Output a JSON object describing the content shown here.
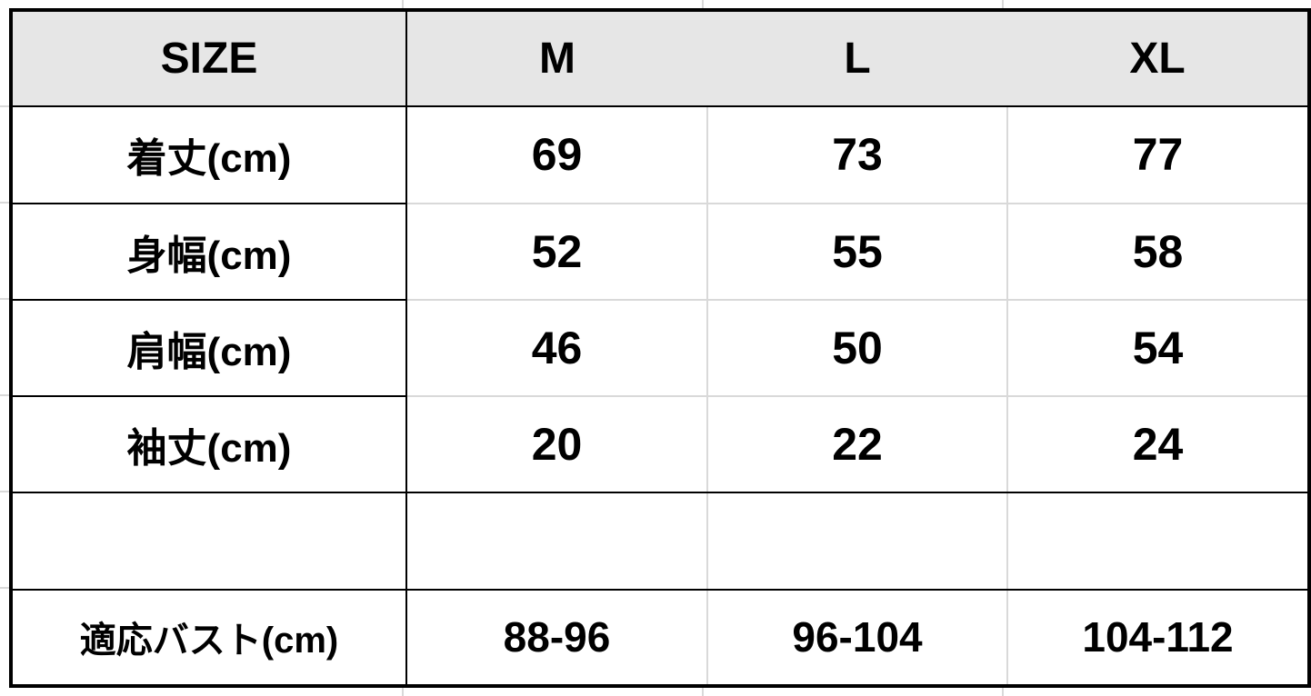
{
  "size_chart": {
    "header": {
      "label": "SIZE",
      "sizes": [
        "M",
        "L",
        "XL"
      ]
    },
    "rows": [
      {
        "label": "着丈(cm)",
        "values": [
          "69",
          "73",
          "77"
        ]
      },
      {
        "label": "身幅(cm)",
        "values": [
          "52",
          "55",
          "58"
        ]
      },
      {
        "label": "肩幅(cm)",
        "values": [
          "46",
          "50",
          "54"
        ]
      },
      {
        "label": "袖丈(cm)",
        "values": [
          "20",
          "22",
          "24"
        ]
      }
    ],
    "bust": {
      "label": "適応バスト(cm)",
      "values": [
        "88-96",
        "96-104",
        "104-112"
      ]
    }
  },
  "colors": {
    "header_bg": "#e6e6e6",
    "grid": "#d9d9d9",
    "border": "#000000"
  }
}
